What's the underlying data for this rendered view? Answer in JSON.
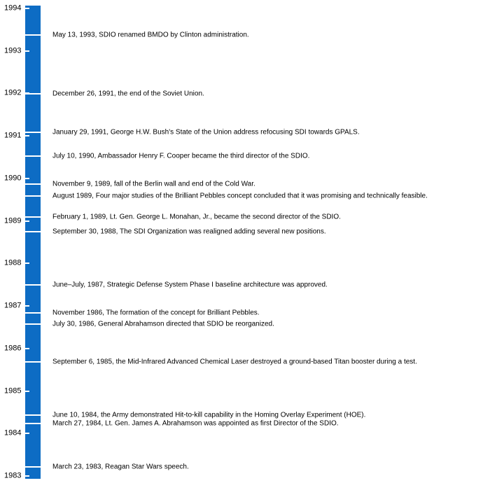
{
  "page": {
    "background": "#ffffff"
  },
  "chart_data": {
    "type": "timeline",
    "orientation": "vertical",
    "title": "",
    "axis": {
      "unit": "year",
      "min": 1983,
      "max": 1994,
      "ticks": [
        1994,
        1993,
        1992,
        1991,
        1990,
        1989,
        1988,
        1987,
        1986,
        1985,
        1984,
        1983
      ]
    },
    "bar_color": "#0d6cc4",
    "tick_color": "#ffffff",
    "text_color": "#000000",
    "events": [
      {
        "year": 1993.37,
        "label": "May 13, 1993, SDIO renamed BMDO by Clinton administration."
      },
      {
        "year": 1991.99,
        "label": "December 26, 1991, the end of the Soviet Union."
      },
      {
        "year": 1991.08,
        "label": "January 29, 1991, George H.W. Bush's State of the Union address refocusing SDI towards GPALS."
      },
      {
        "year": 1990.52,
        "label": "July 10, 1990, Ambassador Henry F. Cooper became the third director of the SDIO."
      },
      {
        "year": 1989.86,
        "label": "November 9, 1989, fall of the Berlin wall and end of the Cold War."
      },
      {
        "year": 1989.58,
        "label": "August 1989, Four major studies of the Brilliant Pebbles concept concluded that it was promising and technically feasible."
      },
      {
        "year": 1989.09,
        "label": "February 1, 1989, Lt. Gen. George L. Monahan, Jr., became the second director of the SDIO."
      },
      {
        "year": 1988.75,
        "label": "September 30, 1988, The SDI Organization was realigned adding several new positions."
      },
      {
        "year": 1987.5,
        "label": "June–July, 1987, Strategic Defense System Phase I baseline architecture was approved."
      },
      {
        "year": 1986.84,
        "label": "November 1986, The formation of the concept for Brilliant Pebbles."
      },
      {
        "year": 1986.58,
        "label": "July 30, 1986, General Abrahamson directed that SDIO be reorganized."
      },
      {
        "year": 1985.68,
        "label": "September 6, 1985, the Mid-Infrared Advanced Chemical Laser destroyed a ground-based Titan booster during a test."
      },
      {
        "year": 1984.44,
        "label": "June 10, 1984, the Army demonstrated Hit-to-kill capability in the Homing Overlay Experiment (HOE)."
      },
      {
        "year": 1984.24,
        "label": "March 27, 1984, Lt. Gen. James A. Abrahamson was appointed as first Director of the SDIO."
      },
      {
        "year": 1983.22,
        "label": "March 23, 1983, Reagan Star Wars speech."
      }
    ]
  }
}
